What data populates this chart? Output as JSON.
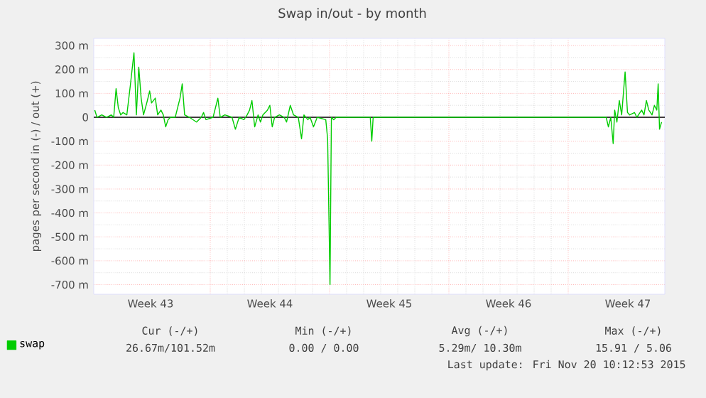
{
  "chart_data": {
    "type": "line",
    "title": "Swap in/out - by month",
    "ylabel": "pages per second in (-) / out (+)",
    "x": [
      "2015-10-18T01:26",
      "2015-10-18T04:34",
      "2015-10-18T11:17",
      "2015-10-18T18:00",
      "2015-10-19T00:43",
      "2015-10-19T04:05",
      "2015-10-19T07:26",
      "2015-10-19T10:34",
      "2015-10-19T13:55",
      "2015-10-19T17:17",
      "2015-10-19T22:34",
      "2015-10-20T03:22",
      "2015-10-20T08:38",
      "2015-10-20T12:00",
      "2015-10-20T15:22",
      "2015-10-20T18:43",
      "2015-10-20T22:05",
      "2015-10-21T02:38",
      "2015-10-21T06:43",
      "2015-10-21T09:22",
      "2015-10-21T14:38",
      "2015-10-21T18:00",
      "2015-10-21T22:34",
      "2015-10-22T01:55",
      "2015-10-22T05:17",
      "2015-10-22T08:38",
      "2015-10-22T12:00",
      "2015-10-22T18:43",
      "2015-10-23T01:26",
      "2015-10-23T04:34",
      "2015-10-23T07:55",
      "2015-10-23T14:38",
      "2015-10-24T00:43",
      "2015-10-24T07:26",
      "2015-10-24T10:34",
      "2015-10-24T13:55",
      "2015-10-25T00:00",
      "2015-10-25T06:43",
      "2015-10-25T10:05",
      "2015-10-25T16:34",
      "2015-10-26T02:38",
      "2015-10-26T07:26",
      "2015-10-26T12:43",
      "2015-10-26T19:26",
      "2015-10-27T00:00",
      "2015-10-27T03:22",
      "2015-10-27T06:43",
      "2015-10-27T10:34",
      "2015-10-27T15:22",
      "2015-10-27T18:43",
      "2015-10-27T22:05",
      "2015-10-28T04:34",
      "2015-10-28T07:55",
      "2015-10-28T11:17",
      "2015-10-28T14:38",
      "2015-10-28T21:22",
      "2015-10-29T04:05",
      "2015-10-29T07:26",
      "2015-10-29T12:43",
      "2015-10-29T17:17",
      "2015-10-30T00:00",
      "2015-10-30T04:34",
      "2015-10-30T07:55",
      "2015-10-30T13:26",
      "2015-10-30T16:34",
      "2015-10-30T21:22",
      "2015-10-31T02:38",
      "2015-10-31T14:38",
      "2015-10-31T17:17",
      "2015-10-31T20:38",
      "2015-10-31T22:34",
      "2015-11-01T01:55",
      "2015-11-01T05:17",
      "2015-11-03T05:17",
      "2015-11-03T07:26",
      "2015-11-03T09:22",
      "2015-11-04T06:43",
      "2015-11-17T01:26",
      "2015-11-17T04:34",
      "2015-11-17T07:55",
      "2015-11-17T11:17",
      "2015-11-17T13:26",
      "2015-11-17T16:34",
      "2015-11-17T19:55",
      "2015-11-17T23:17",
      "2015-11-18T04:05",
      "2015-11-18T07:26",
      "2015-11-18T10:34",
      "2015-11-18T17:17",
      "2015-11-18T20:38",
      "2015-11-19T03:22",
      "2015-11-19T06:43",
      "2015-11-19T10:05",
      "2015-11-19T13:26",
      "2015-11-19T18:00",
      "2015-11-19T21:22",
      "2015-11-20T00:43",
      "2015-11-20T02:38",
      "2015-11-20T04:34",
      "2015-11-20T07:26"
    ],
    "series": [
      {
        "name": "swap",
        "color": "#00cc00",
        "values": [
          30,
          0,
          10,
          0,
          10,
          0,
          120,
          40,
          10,
          20,
          10,
          130,
          270,
          10,
          210,
          80,
          10,
          60,
          110,
          60,
          80,
          10,
          30,
          10,
          -40,
          -10,
          0,
          0,
          80,
          140,
          10,
          0,
          -20,
          0,
          20,
          -10,
          0,
          80,
          0,
          10,
          0,
          -50,
          0,
          -10,
          10,
          30,
          70,
          -40,
          10,
          -20,
          10,
          30,
          50,
          -40,
          0,
          10,
          0,
          -20,
          50,
          10,
          0,
          -90,
          10,
          -10,
          0,
          -40,
          0,
          -10,
          -90,
          -700,
          0,
          -10,
          0,
          0,
          -100,
          0,
          0,
          0,
          -40,
          0,
          -110,
          30,
          -20,
          70,
          10,
          190,
          20,
          10,
          20,
          0,
          30,
          10,
          70,
          30,
          10,
          50,
          30,
          140,
          -50,
          -20
        ]
      }
    ],
    "xlim": [
      "2015-10-18T00:00",
      "2015-11-20T12:00"
    ],
    "ylim": [
      -740,
      330
    ],
    "xticks": [
      {
        "value": "2015-10-21T08:00",
        "label": "Week 43"
      },
      {
        "value": "2015-10-24T20:00",
        "label": null
      },
      {
        "value": "2015-10-28T08:00",
        "label": "Week 44"
      },
      {
        "value": "2015-10-31T20:00",
        "label": null
      },
      {
        "value": "2015-11-04T08:00",
        "label": "Week 45"
      },
      {
        "value": "2015-11-07T20:00",
        "label": null
      },
      {
        "value": "2015-11-11T08:00",
        "label": "Week 46"
      },
      {
        "value": "2015-11-14T20:00",
        "label": null
      },
      {
        "value": "2015-11-18T08:00",
        "label": "Week 47"
      }
    ],
    "yticks": [
      {
        "value": -700,
        "label": "-700 m"
      },
      {
        "value": -600,
        "label": "-600 m"
      },
      {
        "value": -500,
        "label": "-500 m"
      },
      {
        "value": -400,
        "label": "-400 m"
      },
      {
        "value": -300,
        "label": "-300 m"
      },
      {
        "value": -200,
        "label": "-200 m"
      },
      {
        "value": -100,
        "label": "-100 m"
      },
      0,
      {
        "value": 100,
        "label": "100 m"
      },
      {
        "value": 200,
        "label": "200 m"
      },
      {
        "value": 300,
        "label": "300 m"
      }
    ],
    "ref_lines": [
      {
        "axis": "y",
        "value": 0,
        "color": "#000000"
      }
    ],
    "grid": true,
    "legend": "bottom left",
    "annotations": [
      "Cur (-/+)",
      "Min (-/+)",
      "Avg (-/+)",
      "Max (-/+)",
      "26.67m/101.52m",
      "0.00 /   0.00",
      "5.29m/ 10.30m",
      "15.91 /  5.06",
      "Last update: Fri Nov 20 10:12:53 2015"
    ]
  }
}
